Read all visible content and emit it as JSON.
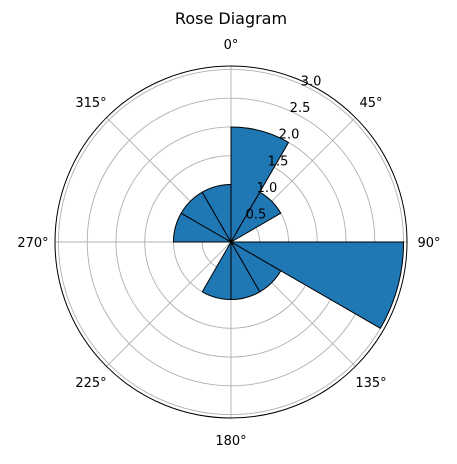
{
  "chart_data": {
    "type": "bar",
    "subtype": "polar-rose",
    "title": "Rose Diagram",
    "theta_zero_location": "N",
    "theta_direction": "clockwise",
    "theta_ticks": [
      {
        "deg": 0,
        "label": "0°"
      },
      {
        "deg": 45,
        "label": "45°"
      },
      {
        "deg": 90,
        "label": "90°"
      },
      {
        "deg": 135,
        "label": "135°"
      },
      {
        "deg": 180,
        "label": "180°"
      },
      {
        "deg": 225,
        "label": "225°"
      },
      {
        "deg": 270,
        "label": "270°"
      },
      {
        "deg": 315,
        "label": "315°"
      }
    ],
    "r_ticks": [
      {
        "value": 0.5,
        "label": "0.5"
      },
      {
        "value": 1.0,
        "label": "1.0"
      },
      {
        "value": 1.5,
        "label": "1.5"
      },
      {
        "value": 2.0,
        "label": "2.0"
      },
      {
        "value": 2.5,
        "label": "2.5"
      },
      {
        "value": 3.0,
        "label": "3.0"
      }
    ],
    "r_label_angle_deg": 22.5,
    "rlim": [
      0,
      3.06
    ],
    "bin_width_deg": 30,
    "bins": [
      {
        "start": 0,
        "end": 30,
        "value": 2.0
      },
      {
        "start": 30,
        "end": 60,
        "value": 1.0
      },
      {
        "start": 60,
        "end": 90,
        "value": 0.0
      },
      {
        "start": 90,
        "end": 120,
        "value": 3.0
      },
      {
        "start": 120,
        "end": 150,
        "value": 1.0
      },
      {
        "start": 150,
        "end": 180,
        "value": 1.0
      },
      {
        "start": 180,
        "end": 210,
        "value": 1.0
      },
      {
        "start": 210,
        "end": 240,
        "value": 0.0
      },
      {
        "start": 240,
        "end": 270,
        "value": 0.0
      },
      {
        "start": 270,
        "end": 300,
        "value": 1.0
      },
      {
        "start": 300,
        "end": 330,
        "value": 1.0
      },
      {
        "start": 330,
        "end": 360,
        "value": 1.0
      }
    ],
    "grid": true,
    "colors": {
      "bar": "#1f77b4",
      "edge": "#000000",
      "grid": "#b0b0b0",
      "spine": "#000000"
    }
  }
}
